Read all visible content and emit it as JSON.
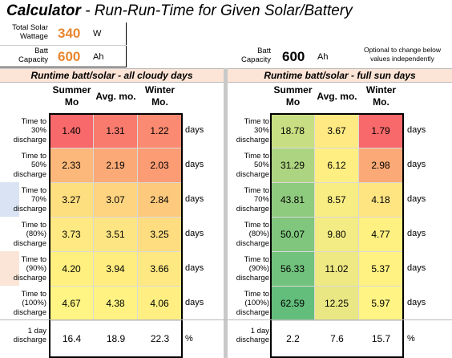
{
  "title": {
    "bold": "Calculator",
    "rest": " - Run-Run-Time for Given Solar/Battery"
  },
  "inputs": {
    "solar_label_1": "Total Solar",
    "solar_label_2": "Wattage",
    "solar_value": "340",
    "solar_unit": "W",
    "batt_label_1": "Batt",
    "batt_label_2": "Capacity",
    "batt_value": "600",
    "batt_unit": "Ah",
    "batt2_label_1": "Batt",
    "batt2_label_2": "Capacity",
    "batt2_value": "600",
    "batt2_unit": "Ah",
    "note_1": "Optional to change below",
    "note_2": "values independently"
  },
  "cloudy": {
    "header": "Runtime batt/solar - all cloudy days",
    "cols": [
      [
        "Summer",
        "Mo"
      ],
      [
        "Avg. mo.",
        ""
      ],
      [
        "Winter",
        "Mo."
      ]
    ],
    "rows": [
      {
        "l1": "Time to",
        "l2": "30%",
        "l3": "discharge",
        "v": [
          "1.40",
          "1.31",
          "1.22"
        ],
        "c": [
          "#f8696b",
          "#f97b6e",
          "#fa8a71"
        ]
      },
      {
        "l1": "Time to",
        "l2": "50%",
        "l3": "discharge",
        "v": [
          "2.33",
          "2.19",
          "2.03"
        ],
        "c": [
          "#fcb87a",
          "#fbaa77",
          "#fb9c74"
        ]
      },
      {
        "l1": "Time to",
        "l2": "70%",
        "l3": "discharge",
        "v": [
          "3.27",
          "3.07",
          "2.84"
        ],
        "c": [
          "#fedf80",
          "#fed480",
          "#fdc97d"
        ]
      },
      {
        "l1": "Time to",
        "l2": "(80%)",
        "l3": "discharge",
        "v": [
          "3.73",
          "3.51",
          "3.25"
        ],
        "c": [
          "#fee983",
          "#fee583",
          "#fedd81"
        ]
      },
      {
        "l1": "Time to",
        "l2": "(90%)",
        "l3": "discharge",
        "v": [
          "4.20",
          "3.94",
          "3.66"
        ],
        "c": [
          "#fff07f",
          "#ffed80",
          "#fee882"
        ]
      },
      {
        "l1": "Time to",
        "l2": "(100%)",
        "l3": "discharge",
        "v": [
          "4.67",
          "4.38",
          "4.06"
        ],
        "c": [
          "#fff584",
          "#fff283",
          "#ffef82"
        ]
      }
    ],
    "unit": "days",
    "day_label_1": "1 day",
    "day_label_2": "discharge",
    "day_values": [
      "16.4",
      "18.9",
      "22.3"
    ],
    "day_unit": "%"
  },
  "sun": {
    "header": "Runtime batt/solar - full sun days",
    "cols": [
      [
        "Summer",
        "Mo"
      ],
      [
        "Avg. mo.",
        ""
      ],
      [
        "Winter",
        "Mo."
      ]
    ],
    "rows": [
      {
        "l1": "Time to",
        "l2": "30%",
        "l3": "discharge",
        "v": [
          "18.78",
          "3.67",
          "1.79"
        ],
        "c": [
          "#c8de82",
          "#fee983",
          "#f8696b"
        ]
      },
      {
        "l1": "Time to",
        "l2": "50%",
        "l3": "discharge",
        "v": [
          "31.29",
          "6.12",
          "2.98"
        ],
        "c": [
          "#add581",
          "#ffef83",
          "#fbaa77"
        ]
      },
      {
        "l1": "Time to",
        "l2": "70%",
        "l3": "discharge",
        "v": [
          "43.81",
          "8.57",
          "4.18"
        ],
        "c": [
          "#8fcb7e",
          "#f8ed83",
          "#fee582"
        ]
      },
      {
        "l1": "Time to",
        "l2": "(80%)",
        "l3": "discharge",
        "v": [
          "50.07",
          "9.80",
          "4.77"
        ],
        "c": [
          "#80c67d",
          "#f3eb84",
          "#fef081"
        ]
      },
      {
        "l1": "Time to",
        "l2": "(90%)",
        "l3": "discharge",
        "v": [
          "56.33",
          "11.02",
          "5.37"
        ],
        "c": [
          "#71c27c",
          "#eee983",
          "#fff283"
        ]
      },
      {
        "l1": "Time to",
        "l2": "(100%)",
        "l3": "discharge",
        "v": [
          "62.59",
          "12.25",
          "5.97"
        ],
        "c": [
          "#63be7b",
          "#e9e783",
          "#fff484"
        ]
      }
    ],
    "unit": "days",
    "day_label_1": "1 day",
    "day_label_2": "discharge",
    "day_values": [
      "2.2",
      "7.6",
      "15.7"
    ],
    "day_unit": "%"
  },
  "colors": {
    "accent_orange": "#e8862e",
    "header_band": "#fce4d6"
  }
}
